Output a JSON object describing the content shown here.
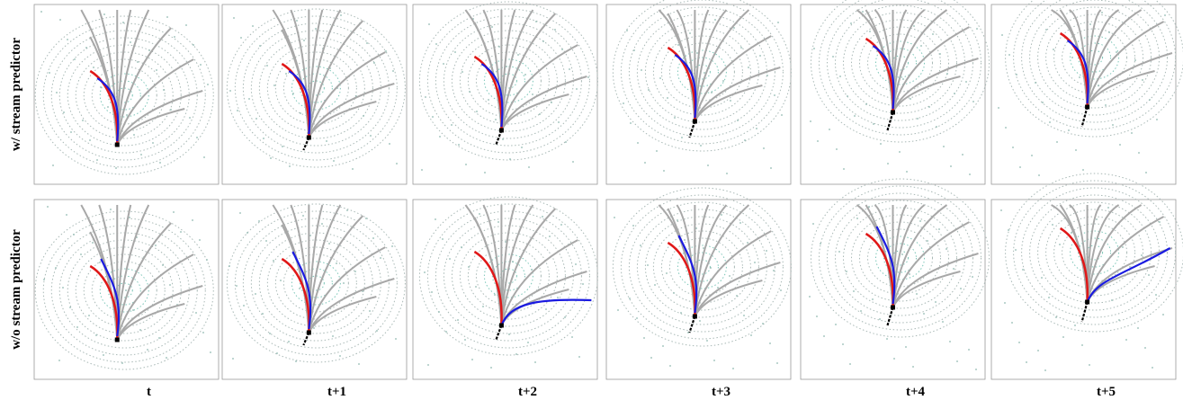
{
  "row_labels": [
    "w/  stream predictor",
    "w/o  stream predictor"
  ],
  "column_labels": [
    "t",
    "t+1",
    "t+2",
    "t+3",
    "t+4",
    "t+5"
  ]
}
